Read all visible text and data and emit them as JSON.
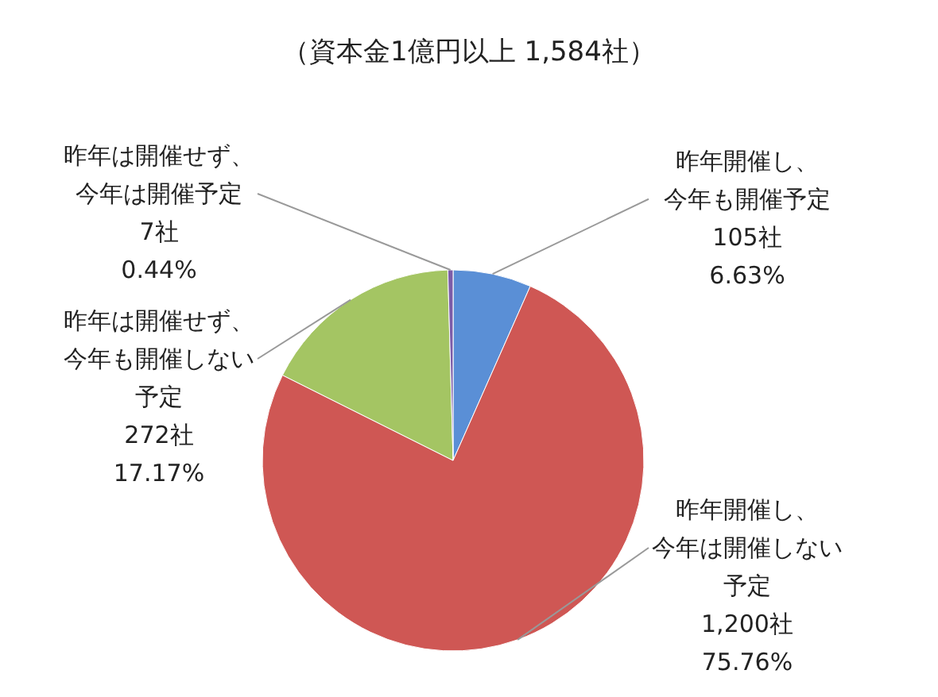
{
  "chart_data": {
    "type": "pie",
    "title": "（資本金1億円以上 1,584社）",
    "categories": [
      "昨年開催し、今年も開催予定",
      "昨年開催し、今年は開催しない予定",
      "昨年は開催せず、今年も開催しない予定",
      "昨年は開催せず、今年は開催予定"
    ],
    "values": [
      105,
      1200,
      272,
      7
    ],
    "value_labels": [
      "105社\n6.63%",
      "1,200社\n75.76%",
      "272社\n17.17%",
      "7社\n0.44%"
    ],
    "colors": [
      "#5a8fd6",
      "#cf5754",
      "#a4c563",
      "#7b5ca8"
    ]
  }
}
